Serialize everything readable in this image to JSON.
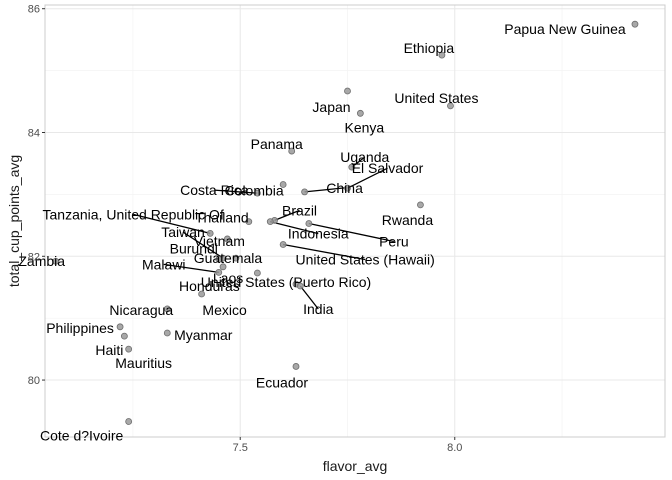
{
  "chart_data": {
    "type": "scatter",
    "xlabel": "flavor_avg",
    "ylabel": "total_cup_points_avg",
    "xlim": [
      7.045,
      8.49
    ],
    "ylim": [
      79.08,
      86.06
    ],
    "x_ticks": [
      7.5,
      8.0
    ],
    "x_tick_labels": [
      "7.5",
      "8.0"
    ],
    "x_minor_ticks": [
      7.25,
      7.75,
      8.25
    ],
    "y_ticks": [
      80,
      82,
      84,
      86
    ],
    "y_tick_labels": [
      "80",
      "82",
      "84",
      "86"
    ],
    "y_minor_ticks": [
      81,
      83,
      85
    ],
    "grid": true,
    "colors": {
      "point_fill": "#999999",
      "point_stroke": "#6e6e6e",
      "grid": "#e8e8e8",
      "panel_border": "#cccccc"
    },
    "points": [
      {
        "name": "Papua New Guinea",
        "x": 8.42,
        "y": 85.75
      },
      {
        "name": "Ethiopia",
        "x": 7.97,
        "y": 85.25
      },
      {
        "name": "Japan",
        "x": 7.75,
        "y": 84.67
      },
      {
        "name": "United States",
        "x": 7.99,
        "y": 84.43
      },
      {
        "name": "Kenya",
        "x": 7.78,
        "y": 84.31
      },
      {
        "name": "Panama",
        "x": 7.62,
        "y": 83.7
      },
      {
        "name": "Uganda",
        "x": 7.76,
        "y": 83.44
      },
      {
        "name": "El Salvador",
        "x": 7.75,
        "y": 83.1
      },
      {
        "name": "Colombia",
        "x": 7.6,
        "y": 83.16
      },
      {
        "name": "China",
        "x": 7.65,
        "y": 83.04
      },
      {
        "name": "Costa Rica",
        "x": 7.54,
        "y": 83.02
      },
      {
        "name": "Rwanda",
        "x": 7.92,
        "y": 82.83
      },
      {
        "name": "Thailand",
        "x": 7.52,
        "y": 82.56
      },
      {
        "name": "Brazil",
        "x": 7.58,
        "y": 82.58
      },
      {
        "name": "Peru",
        "x": 7.66,
        "y": 82.53
      },
      {
        "name": "Indonesia",
        "x": 7.57,
        "y": 82.56
      },
      {
        "name": "Tanzania, United Republic Of",
        "x": 7.43,
        "y": 82.37
      },
      {
        "name": "Vietnam",
        "x": 7.47,
        "y": 82.28
      },
      {
        "name": "Taiwan",
        "x": 7.46,
        "y": 81.97
      },
      {
        "name": "United States (Hawaii)",
        "x": 7.6,
        "y": 82.19
      },
      {
        "name": "Burundi",
        "x": 7.45,
        "y": 81.95
      },
      {
        "name": "Guatemala",
        "x": 7.49,
        "y": 81.97
      },
      {
        "name": "Zambia",
        "x": 7.07,
        "y": 81.92
      },
      {
        "name": "Laos",
        "x": 7.46,
        "y": 81.83
      },
      {
        "name": "Malawi",
        "x": 7.45,
        "y": 81.74
      },
      {
        "name": "Honduras",
        "x": 7.54,
        "y": 81.73
      },
      {
        "name": "United States (Puerto Rico)",
        "x": 7.63,
        "y": 81.55
      },
      {
        "name": "India",
        "x": 7.64,
        "y": 81.52
      },
      {
        "name": "Mexico",
        "x": 7.41,
        "y": 81.39
      },
      {
        "name": "Nicaragua",
        "x": 7.33,
        "y": 81.15
      },
      {
        "name": "Philippines",
        "x": 7.22,
        "y": 80.86
      },
      {
        "name": "Myanmar",
        "x": 7.33,
        "y": 80.76
      },
      {
        "name": "Haiti",
        "x": 7.23,
        "y": 80.71
      },
      {
        "name": "Mauritius",
        "x": 7.24,
        "y": 80.5
      },
      {
        "name": "Ecuador",
        "x": 7.63,
        "y": 80.22
      },
      {
        "name": "Cote d?Ivoire",
        "x": 7.24,
        "y": 79.33
      }
    ]
  }
}
